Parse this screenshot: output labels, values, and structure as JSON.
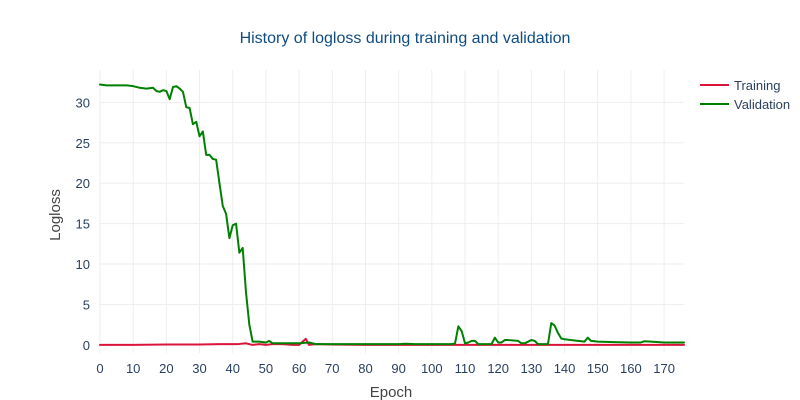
{
  "chart_data": {
    "type": "line",
    "title": "History of logloss during training and validation",
    "xlabel": "Epoch",
    "ylabel": "Logloss",
    "xlim": [
      0,
      176
    ],
    "ylim": [
      -1,
      34
    ],
    "xticks": [
      0,
      10,
      20,
      30,
      40,
      50,
      60,
      70,
      80,
      90,
      100,
      110,
      120,
      130,
      140,
      150,
      160,
      170
    ],
    "yticks": [
      0,
      5,
      10,
      15,
      20,
      25,
      30
    ],
    "grid": true,
    "legend_position": "top-right",
    "series": [
      {
        "name": "Training",
        "color": "#dc143c",
        "points": [
          [
            0,
            0.0
          ],
          [
            10,
            0.0
          ],
          [
            20,
            0.05
          ],
          [
            30,
            0.05
          ],
          [
            36,
            0.1
          ],
          [
            40,
            0.1
          ],
          [
            42,
            0.12
          ],
          [
            44,
            0.2
          ],
          [
            46,
            0.0
          ],
          [
            48,
            0.1
          ],
          [
            50,
            0.0
          ],
          [
            52,
            0.1
          ],
          [
            55,
            0.1
          ],
          [
            58,
            0.0
          ],
          [
            60,
            0.0
          ],
          [
            62,
            0.75
          ],
          [
            63,
            0.0
          ],
          [
            65,
            0.1
          ],
          [
            70,
            0.05
          ],
          [
            80,
            0.0
          ],
          [
            90,
            0.0
          ],
          [
            100,
            0.0
          ],
          [
            110,
            0.0
          ],
          [
            120,
            0.0
          ],
          [
            130,
            0.0
          ],
          [
            140,
            0.0
          ],
          [
            150,
            0.0
          ],
          [
            160,
            0.0
          ],
          [
            170,
            0.0
          ],
          [
            176,
            0.0
          ]
        ]
      },
      {
        "name": "Validation",
        "color": "#008000",
        "points": [
          [
            0,
            32.2
          ],
          [
            2,
            32.1
          ],
          [
            5,
            32.1
          ],
          [
            8,
            32.1
          ],
          [
            10,
            32.0
          ],
          [
            12,
            31.8
          ],
          [
            14,
            31.7
          ],
          [
            16,
            31.8
          ],
          [
            17,
            31.4
          ],
          [
            18,
            31.3
          ],
          [
            19,
            31.5
          ],
          [
            20,
            31.4
          ],
          [
            21,
            30.4
          ],
          [
            22,
            31.9
          ],
          [
            23,
            32.0
          ],
          [
            24,
            31.7
          ],
          [
            25,
            31.3
          ],
          [
            26,
            29.4
          ],
          [
            27,
            29.3
          ],
          [
            28,
            27.3
          ],
          [
            29,
            27.6
          ],
          [
            30,
            25.8
          ],
          [
            31,
            26.4
          ],
          [
            32,
            23.5
          ],
          [
            33,
            23.5
          ],
          [
            34,
            23.0
          ],
          [
            35,
            22.9
          ],
          [
            36,
            20.0
          ],
          [
            37,
            17.2
          ],
          [
            38,
            16.2
          ],
          [
            39,
            13.2
          ],
          [
            40,
            14.8
          ],
          [
            41,
            15.0
          ],
          [
            42,
            11.4
          ],
          [
            43,
            12.0
          ],
          [
            44,
            6.5
          ],
          [
            45,
            2.5
          ],
          [
            46,
            0.4
          ],
          [
            48,
            0.4
          ],
          [
            50,
            0.3
          ],
          [
            51,
            0.5
          ],
          [
            52,
            0.2
          ],
          [
            55,
            0.2
          ],
          [
            60,
            0.2
          ],
          [
            63,
            0.3
          ],
          [
            65,
            0.1
          ],
          [
            70,
            0.1
          ],
          [
            80,
            0.1
          ],
          [
            90,
            0.1
          ],
          [
            92,
            0.15
          ],
          [
            95,
            0.1
          ],
          [
            100,
            0.1
          ],
          [
            106,
            0.1
          ],
          [
            107,
            0.2
          ],
          [
            108,
            2.3
          ],
          [
            109,
            1.7
          ],
          [
            110,
            0.2
          ],
          [
            111,
            0.3
          ],
          [
            112,
            0.5
          ],
          [
            113,
            0.5
          ],
          [
            114,
            0.1
          ],
          [
            116,
            0.1
          ],
          [
            118,
            0.1
          ],
          [
            119,
            0.9
          ],
          [
            120,
            0.3
          ],
          [
            121,
            0.3
          ],
          [
            122,
            0.6
          ],
          [
            123,
            0.6
          ],
          [
            126,
            0.5
          ],
          [
            127,
            0.2
          ],
          [
            128,
            0.2
          ],
          [
            130,
            0.6
          ],
          [
            131,
            0.5
          ],
          [
            132,
            0.1
          ],
          [
            134,
            0.1
          ],
          [
            135,
            0.1
          ],
          [
            136,
            2.7
          ],
          [
            137,
            2.4
          ],
          [
            138,
            1.5
          ],
          [
            139,
            0.8
          ],
          [
            140,
            0.7
          ],
          [
            142,
            0.6
          ],
          [
            144,
            0.5
          ],
          [
            146,
            0.4
          ],
          [
            147,
            0.9
          ],
          [
            148,
            0.5
          ],
          [
            150,
            0.4
          ],
          [
            155,
            0.35
          ],
          [
            160,
            0.3
          ],
          [
            163,
            0.3
          ],
          [
            164,
            0.45
          ],
          [
            166,
            0.4
          ],
          [
            170,
            0.3
          ],
          [
            176,
            0.3
          ]
        ]
      }
    ]
  }
}
